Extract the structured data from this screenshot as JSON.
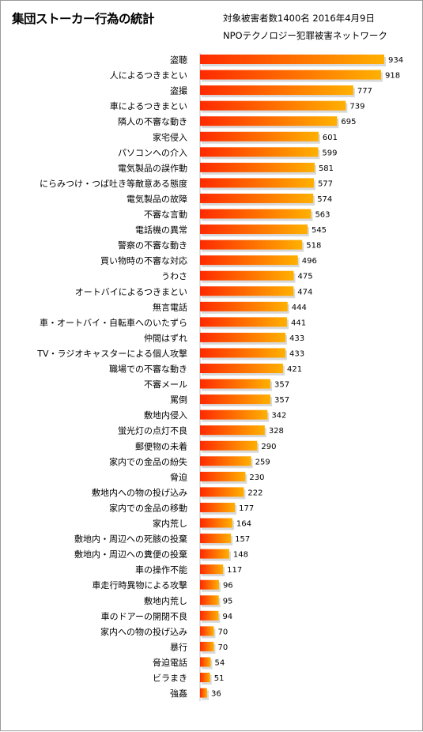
{
  "chart_data": {
    "type": "bar",
    "orientation": "horizontal",
    "title": "集団ストーカー行為の統計",
    "subtitle_lines": [
      "対象被害者数1400名 2016年4月9日",
      "NPOテクノロジー犯罪被害ネットワーク"
    ],
    "categories": [
      "盗聴",
      "人によるつきまとい",
      "盗撮",
      "車によるつきまとい",
      "隣人の不審な動き",
      "家宅侵入",
      "パソコンへの介入",
      "電気製品の誤作動",
      "にらみつけ・つば吐き等敵意ある態度",
      "電気製品の故障",
      "不審な言動",
      "電話機の異常",
      "警察の不審な動き",
      "買い物時の不審な対応",
      "うわさ",
      "オートバイによるつきまとい",
      "無言電話",
      "車・オートバイ・自転車へのいたずら",
      "仲間はずれ",
      "TV・ラジオキャスターによる個人攻撃",
      "職場での不審な動き",
      "不審メール",
      "罵倒",
      "敷地内侵入",
      "蛍光灯の点灯不良",
      "郵便物の未着",
      "家内での金品の紛失",
      "脅迫",
      "敷地内への物の投げ込み",
      "家内での金品の移動",
      "家内荒し",
      "敷地内・周辺への死骸の投棄",
      "敷地内・周辺への糞便の投棄",
      "車の操作不能",
      "車走行時異物による攻撃",
      "敷地内荒し",
      "車のドアーの開閉不良",
      "家内への物の投げ込み",
      "暴行",
      "脅迫電話",
      "ビラまき",
      "強姦"
    ],
    "values": [
      934,
      918,
      777,
      739,
      695,
      601,
      599,
      581,
      577,
      574,
      563,
      545,
      518,
      496,
      475,
      474,
      444,
      441,
      433,
      433,
      421,
      357,
      357,
      342,
      328,
      290,
      259,
      230,
      222,
      177,
      164,
      157,
      148,
      117,
      96,
      95,
      94,
      70,
      70,
      54,
      51,
      36
    ],
    "data_labels": true,
    "bar_colors": {
      "start": "#ff2a00",
      "end": "#ffb000",
      "shadow": "#d9d9d9"
    }
  }
}
